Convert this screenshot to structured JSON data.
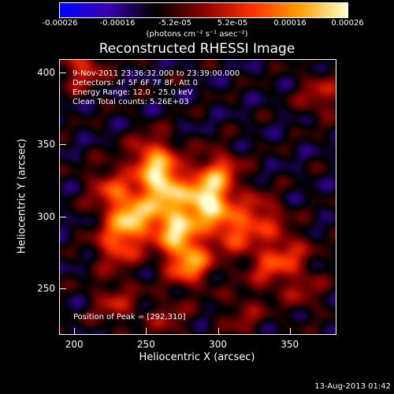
{
  "chart_data": {
    "type": "heatmap",
    "title": "Reconstructed RHESSI Image",
    "xlabel": "Heliocentric X (arcsec)",
    "ylabel": "Heliocentric Y (arcsec)",
    "xlim": [
      190,
      382
    ],
    "ylim": [
      218,
      409
    ],
    "x_ticks": [
      "200",
      "250",
      "300",
      "350"
    ],
    "y_ticks": [
      "250",
      "300",
      "350",
      "400"
    ],
    "colorbar": {
      "min": -0.00026,
      "max": 0.00026,
      "tick_labels": [
        "-0.00026",
        "-0.00016",
        "-5.2e-05",
        "5.2e-05",
        "0.00016",
        "0.00026"
      ],
      "units": "(photons cm⁻² s⁻¹ asec⁻²)",
      "colormap": [
        "#0000ff",
        "#3a00b0",
        "#000000",
        "#8a0000",
        "#ff3000",
        "#ffa000",
        "#ffffd0"
      ]
    },
    "annotations": {
      "time_range": "9-Nov-2011 23:36:32.000 to 23:39:00.000",
      "detectors": "Detectors: 4F 5F 6F 7F 8F, Att 0",
      "energy_range": "Energy Range: 12.0 - 25.0 keV",
      "method_counts": "Clean     Total counts: 5.26E+03",
      "peak_position": "Position of Peak = [292,310]"
    },
    "peak": [
      292,
      310
    ],
    "sources": [
      {
        "x": 292,
        "y": 310,
        "amp": 1.0
      },
      {
        "x": 262,
        "y": 320,
        "amp": 0.9
      },
      {
        "x": 240,
        "y": 300,
        "amp": 0.85
      },
      {
        "x": 270,
        "y": 292,
        "amp": 0.9
      },
      {
        "x": 280,
        "y": 268,
        "amp": 0.8
      },
      {
        "x": 255,
        "y": 340,
        "amp": 0.7
      },
      {
        "x": 300,
        "y": 330,
        "amp": 0.6
      },
      {
        "x": 310,
        "y": 290,
        "amp": 0.55
      },
      {
        "x": 230,
        "y": 280,
        "amp": 0.55
      },
      {
        "x": 330,
        "y": 300,
        "amp": 0.45
      },
      {
        "x": 225,
        "y": 320,
        "amp": 0.45
      },
      {
        "x": 335,
        "y": 265,
        "amp": 0.4
      },
      {
        "x": 350,
        "y": 275,
        "amp": 0.35
      },
      {
        "x": 205,
        "y": 405,
        "amp": 0.45
      },
      {
        "x": 372,
        "y": 385,
        "amp": 0.35
      },
      {
        "x": 228,
        "y": 240,
        "amp": 0.35
      },
      {
        "x": 360,
        "y": 248,
        "amp": 0.25
      },
      {
        "x": 318,
        "y": 232,
        "amp": 0.25
      },
      {
        "x": 265,
        "y": 228,
        "amp": 0.25
      }
    ],
    "footer_date": "13-Aug-2013 01:42"
  }
}
